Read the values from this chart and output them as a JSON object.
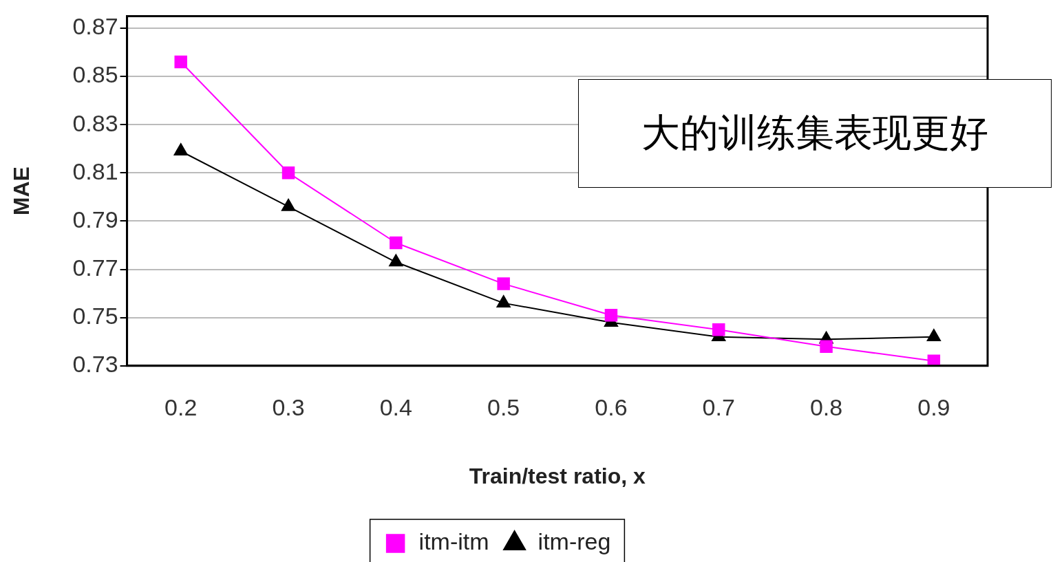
{
  "chart_data": {
    "type": "line",
    "xlabel": "Train/test ratio, x",
    "ylabel": "MAE",
    "categories": [
      "0.2",
      "0.3",
      "0.4",
      "0.5",
      "0.6",
      "0.7",
      "0.8",
      "0.9"
    ],
    "series": [
      {
        "name": "itm-itm",
        "color": "#ff00ff",
        "marker": "square",
        "values": [
          0.856,
          0.81,
          0.781,
          0.764,
          0.751,
          0.745,
          0.738,
          0.732
        ]
      },
      {
        "name": "itm-reg",
        "color": "#000000",
        "marker": "triangle",
        "values": [
          0.819,
          0.796,
          0.773,
          0.756,
          0.748,
          0.742,
          0.741,
          0.742
        ]
      }
    ],
    "ylim": [
      0.73,
      0.875
    ],
    "yticks": [
      0.73,
      0.75,
      0.77,
      0.79,
      0.81,
      0.83,
      0.85,
      0.87
    ],
    "grid": "y",
    "legend": "bottom",
    "line_style": "solid",
    "annotations": [
      "大的训练集表现更好"
    ]
  }
}
